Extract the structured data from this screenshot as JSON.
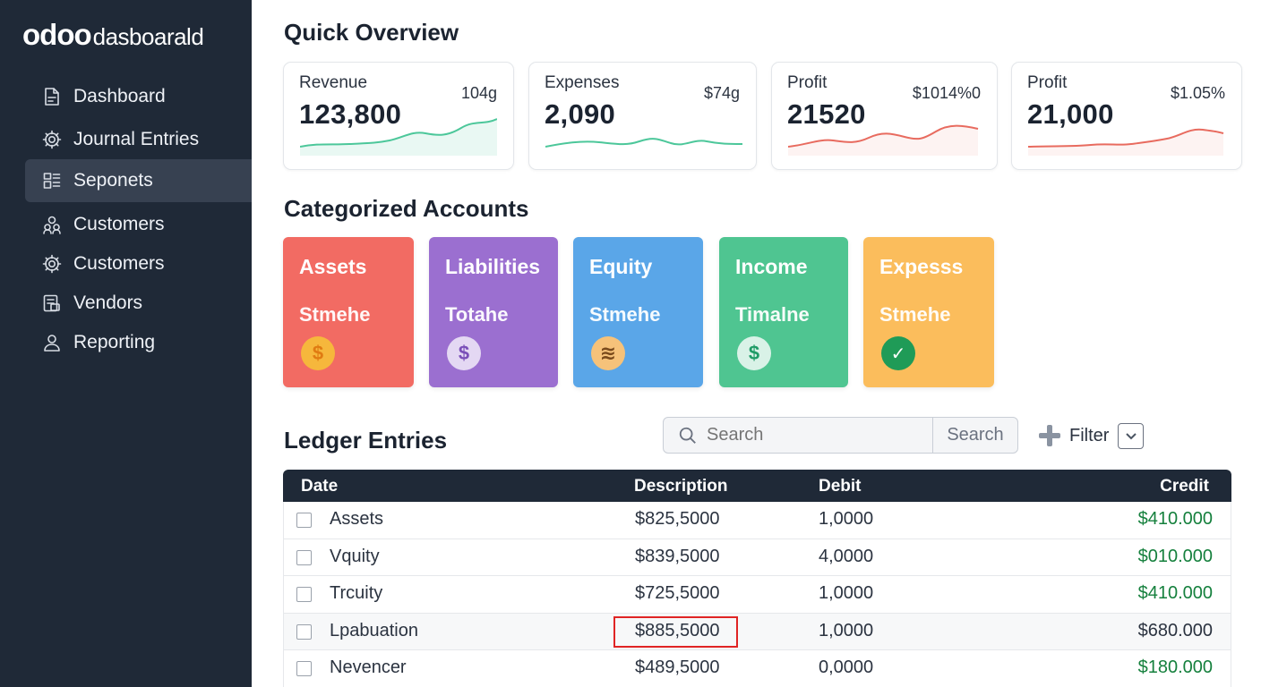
{
  "app": {
    "logo_brand": "odoo",
    "logo_suffix": "dasboarald"
  },
  "sidebar": {
    "items": [
      {
        "label": "Dashboard",
        "icon": "dashboard-icon"
      },
      {
        "label": "Journal Entries",
        "icon": "gear-icon"
      },
      {
        "label": "Seponets",
        "icon": "grid-icon",
        "active": true
      },
      {
        "label": "Customers",
        "icon": "users-icon"
      },
      {
        "label": "Customers",
        "icon": "gear-icon"
      },
      {
        "label": "Vendors",
        "icon": "document-icon"
      },
      {
        "label": "Reporting",
        "icon": "person-icon"
      }
    ]
  },
  "overview": {
    "title": "Quick Overview",
    "cards": [
      {
        "name": "Revenue",
        "value": "123,800",
        "side": "104g",
        "trend_color": "#4cc79a"
      },
      {
        "name": "Expenses",
        "value": "2,090",
        "side": "$74g",
        "trend_color": "#4cc79a"
      },
      {
        "name": "Profit",
        "value": "21520",
        "side": "$1014%0",
        "trend_color": "#e86b5f"
      },
      {
        "name": "Profit",
        "value": "21,000",
        "side": "$1.05%",
        "trend_color": "#e86b5f"
      }
    ]
  },
  "categories": {
    "title": "Categorized Accounts",
    "items": [
      {
        "title": "Assets",
        "sub": "Stmehe",
        "icon": "$",
        "icon_name": "dollar-coin-icon",
        "color": "#f26b63"
      },
      {
        "title": "Liabilities",
        "sub": "Totahe",
        "icon": "$",
        "icon_name": "dollar-coin-icon",
        "color": "#9b6fd0"
      },
      {
        "title": "Equity",
        "sub": "Stmehe",
        "icon": "≋",
        "icon_name": "layers-icon",
        "color": "#5aa6e8"
      },
      {
        "title": "Income",
        "sub": "Timalne",
        "icon": "$",
        "icon_name": "dollar-coin-icon",
        "color": "#4fc591"
      },
      {
        "title": "Expesss",
        "sub": "Stmehe",
        "icon": "✓",
        "icon_name": "check-circle-icon",
        "color": "#fbbd5c"
      }
    ]
  },
  "ledger": {
    "title": "Ledger Entries",
    "search_placeholder": "Search",
    "search_button": "Search",
    "filter_label": "Filter",
    "columns": {
      "date": "Date",
      "description": "Description",
      "debit": "Debit",
      "credit": "Credit"
    },
    "rows": [
      {
        "name": "Assets",
        "description": "$825,5000",
        "debit": "1,0000",
        "credit": "$410.000",
        "credit_green": true
      },
      {
        "name": "Vquity",
        "description": "$839,5000",
        "debit": "4,0000",
        "credit": "$010.000",
        "credit_green": true
      },
      {
        "name": "Trcuity",
        "description": "$725,5000",
        "debit": "1,0000",
        "credit": "$410.000",
        "credit_green": true
      },
      {
        "name": "Lpabuation",
        "description": "$885,5000",
        "debit": "1,0000",
        "credit": "$680.000",
        "credit_green": false,
        "highlighted": true
      },
      {
        "name": "Nevencer",
        "description": "$489,5000",
        "debit": "0,0000",
        "credit": "$180.000",
        "credit_green": true
      }
    ]
  }
}
